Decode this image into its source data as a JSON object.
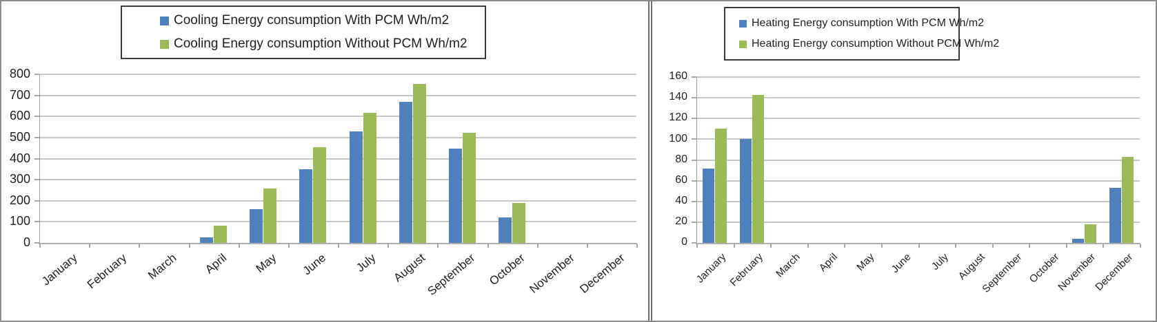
{
  "months": [
    "January",
    "February",
    "March",
    "April",
    "May",
    "June",
    "July",
    "August",
    "September",
    "October",
    "November",
    "December"
  ],
  "colors": {
    "with_pcm_blue": "#4F81BD",
    "without_pcm_green": "#9BBB59",
    "gridline": "#c7c7c7",
    "axis_line": "#aeaeae",
    "axis_vertical": "#9a9a9a",
    "text": "#1f1f1f",
    "legend_border": "#3a3a3a",
    "panel_border": "#6b6b6b"
  },
  "chart_data": [
    {
      "type": "bar",
      "title": "",
      "categories": [
        "January",
        "February",
        "March",
        "April",
        "May",
        "June",
        "July",
        "August",
        "September",
        "October",
        "November",
        "December"
      ],
      "series": [
        {
          "name": "Cooling  Energy consumption With PCM Wh/m2",
          "color_key": "with_pcm_blue",
          "values": [
            0,
            0,
            0,
            25,
            160,
            350,
            528,
            668,
            448,
            120,
            0,
            0
          ]
        },
        {
          "name": "Cooling Energy consumption Without PCM Wh/m2",
          "color_key": "without_pcm_green",
          "values": [
            0,
            0,
            0,
            80,
            258,
            455,
            618,
            755,
            524,
            188,
            0,
            0
          ]
        }
      ],
      "xlabel": "",
      "ylabel": "",
      "ylim": [
        0,
        800
      ],
      "ytick_step": 100,
      "ytick_labels": [
        "800",
        "700",
        "600",
        "500",
        "400",
        "300",
        "200",
        "100",
        "0"
      ],
      "grid": true,
      "legend_position": "top"
    },
    {
      "type": "bar",
      "title": "",
      "categories": [
        "January",
        "February",
        "March",
        "April",
        "May",
        "June",
        "July",
        "August",
        "September",
        "October",
        "November",
        "December"
      ],
      "series": [
        {
          "name": "Heating Energy consumption With PCM Wh/m2",
          "color_key": "with_pcm_blue",
          "values": [
            72,
            100,
            0,
            0,
            0,
            0,
            0,
            0,
            0,
            0,
            4,
            53
          ]
        },
        {
          "name": "Heating Energy consumption Without PCM Wh/m2",
          "color_key": "without_pcm_green",
          "values": [
            110,
            143,
            0,
            0,
            0,
            0,
            0,
            0,
            0,
            0,
            18,
            83
          ]
        }
      ],
      "xlabel": "",
      "ylabel": "",
      "ylim": [
        0,
        160
      ],
      "ytick_step": 20,
      "ytick_labels": [
        "160",
        "140",
        "120",
        "100",
        "80",
        "60",
        "40",
        "20",
        "0"
      ],
      "grid": true,
      "legend_position": "top"
    }
  ]
}
